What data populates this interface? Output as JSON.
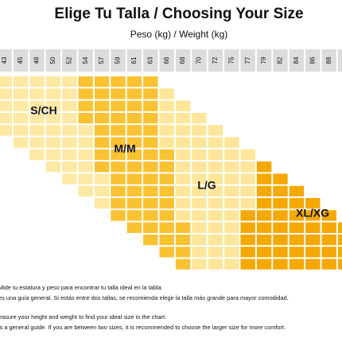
{
  "header": {
    "title": "Elige Tu Talla / Choosing Your Size",
    "subtitle": "Peso (kg) / Weight (kg)"
  },
  "weights": [
    "43",
    "45",
    "48",
    "50",
    "52",
    "54",
    "57",
    "59",
    "61",
    "63",
    "66",
    "68",
    "70",
    "72",
    "75",
    "77",
    "79",
    "82",
    "84",
    "86",
    "88"
  ],
  "sizes": [
    "S/CH",
    "M/M",
    "L/G",
    "XL/XG"
  ],
  "notes": [
    "Mide tu estatura y peso para encontrar tu talla ideal en la tabla.",
    "es una guía general. Si estás entre dos tallas, se recomienda elegir la talla más grande para mayor comodidad.",
    "easure your height and weight to find your ideal size in the chart.",
    "is a general guide. If you are between two sizes, it is recommended to choose the larger size for more comfort."
  ]
}
